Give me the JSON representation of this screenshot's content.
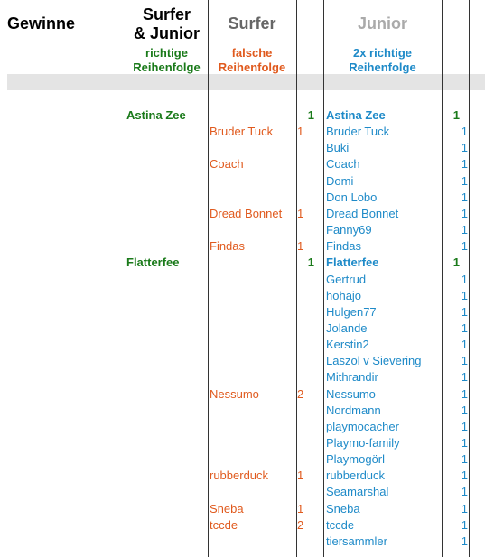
{
  "headers": {
    "gewinne": "Gewinne",
    "surfer_junior_line1": "Surfer",
    "surfer_junior_line2": "& Junior",
    "surfer": "Surfer",
    "junior": "Junior",
    "sub_sj_line1": "richtige",
    "sub_sj_line2": "Reihenfolge",
    "sub_surfer_line1": "falsche",
    "sub_surfer_line2": "Reihenfolge",
    "sub_junior_line1": "2x richtige",
    "sub_junior_line2": "Reihenfolge"
  },
  "colors": {
    "surfer_junior": "#1a7a1a",
    "surfer": "#e05a1e",
    "junior": "#1e8ac8"
  },
  "rows": [
    {
      "sj": "Astina Zee",
      "sj_count": "1",
      "surfer": "",
      "surfer_count": "",
      "junior": "Astina Zee",
      "junior_count": "1",
      "junior_bold": true
    },
    {
      "sj": "",
      "sj_count": "",
      "surfer": "Bruder Tuck",
      "surfer_count": "1",
      "junior": "Bruder Tuck",
      "junior_count": "1",
      "junior_bold": false
    },
    {
      "sj": "",
      "sj_count": "",
      "surfer": "",
      "surfer_count": "",
      "junior": "Buki",
      "junior_count": "1",
      "junior_bold": false
    },
    {
      "sj": "",
      "sj_count": "",
      "surfer": "Coach",
      "surfer_count": "",
      "junior": "Coach",
      "junior_count": "1",
      "junior_bold": false
    },
    {
      "sj": "",
      "sj_count": "",
      "surfer": "",
      "surfer_count": "",
      "junior": "Domi",
      "junior_count": "1",
      "junior_bold": false
    },
    {
      "sj": "",
      "sj_count": "",
      "surfer": "",
      "surfer_count": "",
      "junior": "Don Lobo",
      "junior_count": "1",
      "junior_bold": false
    },
    {
      "sj": "",
      "sj_count": "",
      "surfer": "Dread Bonnet",
      "surfer_count": "1",
      "junior": "Dread Bonnet",
      "junior_count": "1",
      "junior_bold": false
    },
    {
      "sj": "",
      "sj_count": "",
      "surfer": "",
      "surfer_count": "",
      "junior": "Fanny69",
      "junior_count": "1",
      "junior_bold": false
    },
    {
      "sj": "",
      "sj_count": "",
      "surfer": "Findas",
      "surfer_count": "1",
      "junior": "Findas",
      "junior_count": "1",
      "junior_bold": false
    },
    {
      "sj": "Flatterfee",
      "sj_count": "1",
      "surfer": "",
      "surfer_count": "",
      "junior": "Flatterfee",
      "junior_count": "1",
      "junior_bold": true
    },
    {
      "sj": "",
      "sj_count": "",
      "surfer": "",
      "surfer_count": "",
      "junior": "Gertrud",
      "junior_count": "1",
      "junior_bold": false
    },
    {
      "sj": "",
      "sj_count": "",
      "surfer": "",
      "surfer_count": "",
      "junior": "hohajo",
      "junior_count": "1",
      "junior_bold": false
    },
    {
      "sj": "",
      "sj_count": "",
      "surfer": "",
      "surfer_count": "",
      "junior": "Hulgen77",
      "junior_count": "1",
      "junior_bold": false
    },
    {
      "sj": "",
      "sj_count": "",
      "surfer": "",
      "surfer_count": "",
      "junior": "Jolande",
      "junior_count": "1",
      "junior_bold": false
    },
    {
      "sj": "",
      "sj_count": "",
      "surfer": "",
      "surfer_count": "",
      "junior": "Kerstin2",
      "junior_count": "1",
      "junior_bold": false
    },
    {
      "sj": "",
      "sj_count": "",
      "surfer": "",
      "surfer_count": "",
      "junior": "Laszol v Sievering",
      "junior_count": "1",
      "junior_bold": false
    },
    {
      "sj": "",
      "sj_count": "",
      "surfer": "",
      "surfer_count": "",
      "junior": "Mithrandir",
      "junior_count": "1",
      "junior_bold": false
    },
    {
      "sj": "",
      "sj_count": "",
      "surfer": "Nessumo",
      "surfer_count": "2",
      "junior": "Nessumo",
      "junior_count": "1",
      "junior_bold": false
    },
    {
      "sj": "",
      "sj_count": "",
      "surfer": "",
      "surfer_count": "",
      "junior": "Nordmann",
      "junior_count": "1",
      "junior_bold": false
    },
    {
      "sj": "",
      "sj_count": "",
      "surfer": "",
      "surfer_count": "",
      "junior": "playmocacher",
      "junior_count": "1",
      "junior_bold": false
    },
    {
      "sj": "",
      "sj_count": "",
      "surfer": "",
      "surfer_count": "",
      "junior": "Playmo-family",
      "junior_count": "1",
      "junior_bold": false
    },
    {
      "sj": "",
      "sj_count": "",
      "surfer": "",
      "surfer_count": "",
      "junior": "Playmogörl",
      "junior_count": "1",
      "junior_bold": false
    },
    {
      "sj": "",
      "sj_count": "",
      "surfer": "rubberduck",
      "surfer_count": "1",
      "junior": "rubberduck",
      "junior_count": "1",
      "junior_bold": false
    },
    {
      "sj": "",
      "sj_count": "",
      "surfer": "",
      "surfer_count": "",
      "junior": "Seamarshal",
      "junior_count": "1",
      "junior_bold": false
    },
    {
      "sj": "",
      "sj_count": "",
      "surfer": "Sneba",
      "surfer_count": "1",
      "junior": "Sneba",
      "junior_count": "1",
      "junior_bold": false
    },
    {
      "sj": "",
      "sj_count": "",
      "surfer": "tccde",
      "surfer_count": "2",
      "junior": "tccde",
      "junior_count": "1",
      "junior_bold": false
    },
    {
      "sj": "",
      "sj_count": "",
      "surfer": "",
      "surfer_count": "",
      "junior": "tiersammler",
      "junior_count": "1",
      "junior_bold": false
    }
  ]
}
